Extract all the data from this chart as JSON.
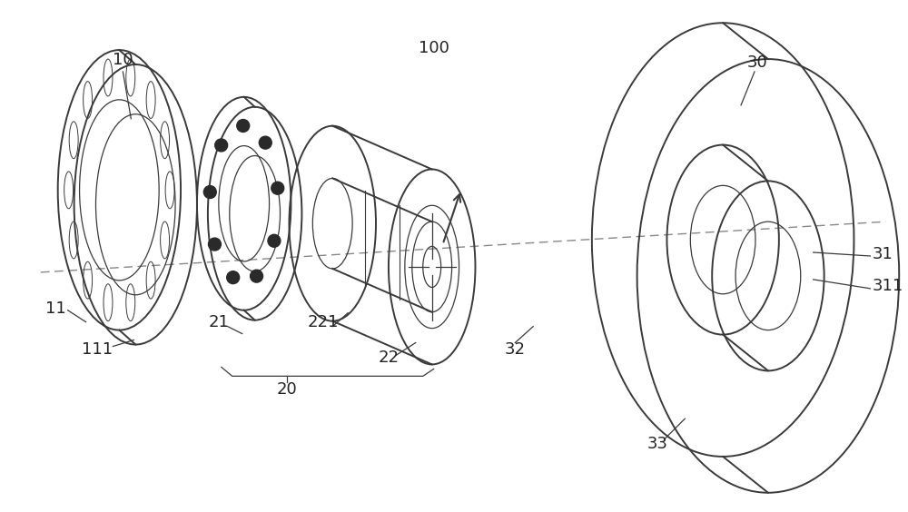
{
  "bg_color": "#ffffff",
  "line_color": "#3a3a3a",
  "dash_color": "#888888",
  "figsize": [
    10.0,
    5.64
  ],
  "dpi": 100,
  "lw_main": 1.4,
  "lw_thin": 0.9,
  "label_fs": 13,
  "label_color": "#222222"
}
